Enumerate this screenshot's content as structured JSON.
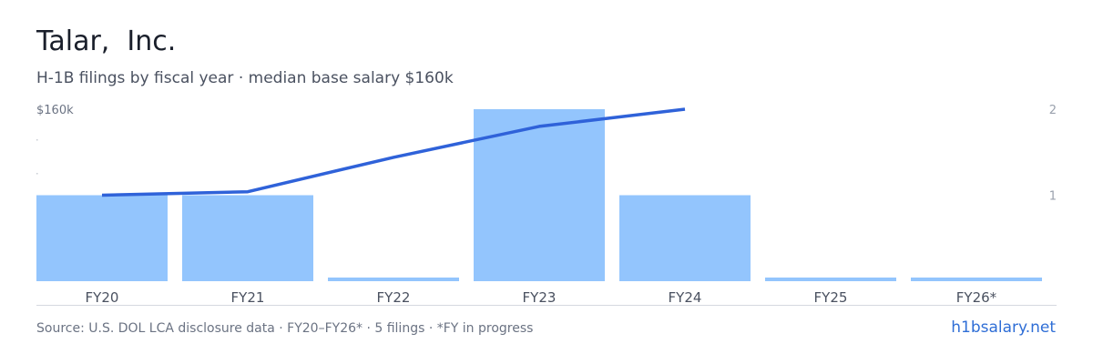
{
  "header": {
    "title": "Talar,  Inc.",
    "subtitle": "H-1B filings by fiscal year · median base salary $160k"
  },
  "chart_data": {
    "type": "bar",
    "categories": [
      "FY20",
      "FY21",
      "FY22",
      "FY23",
      "FY24",
      "FY25",
      "FY26*"
    ],
    "series": [
      {
        "kind": "bar",
        "axis": "right",
        "values": [
          1,
          1,
          0,
          2,
          1,
          0,
          0
        ]
      },
      {
        "kind": "line",
        "axis": "left",
        "values": [
          110,
          112,
          132,
          150,
          160,
          null,
          null
        ]
      }
    ],
    "left_axis": {
      "ticks": [
        {
          "value": 160,
          "label": "$160k"
        }
      ],
      "ylim": [
        0,
        160
      ]
    },
    "right_axis": {
      "ticks": [
        {
          "value": 1,
          "label": "1"
        },
        {
          "value": 2,
          "label": "2"
        }
      ],
      "ylim": [
        0,
        2
      ]
    },
    "grid": false,
    "colors": {
      "bar": "#93c5fd",
      "line": "#2f62d9",
      "axis_text": "#6b7383",
      "tick_text": "#9aa1ad",
      "baseline": "#d5d9e0"
    }
  },
  "footer": {
    "source": "Source: U.S. DOL LCA disclosure data · FY20–FY26* · 5 filings · *FY in progress",
    "brand": "h1bsalary.net"
  }
}
